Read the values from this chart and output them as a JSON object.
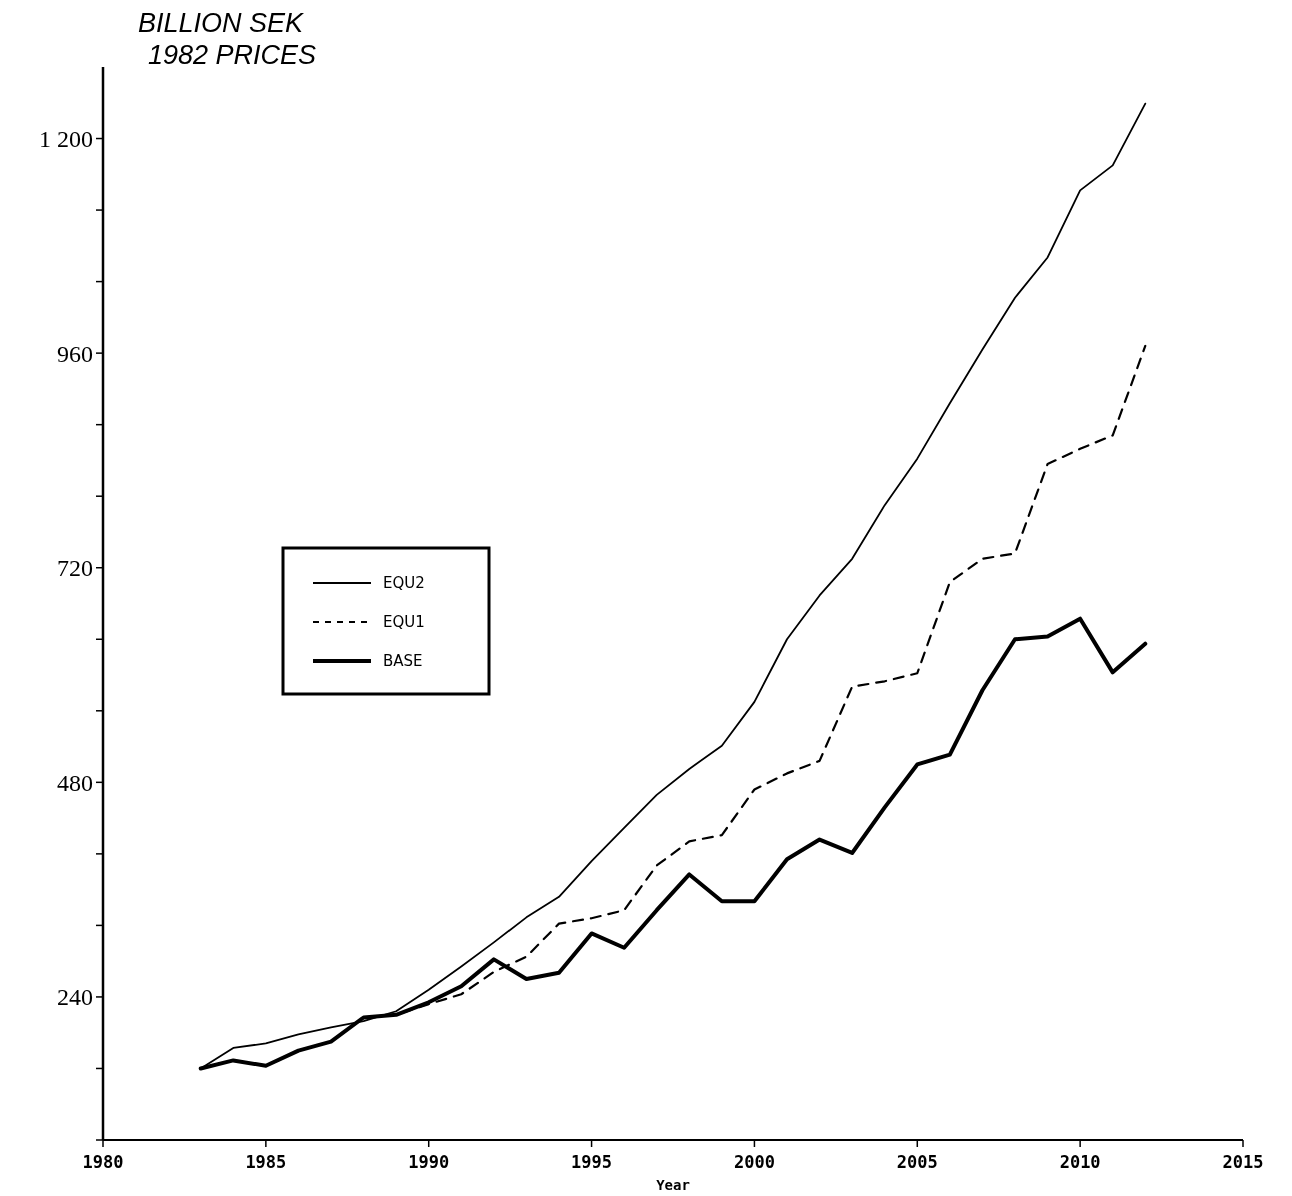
{
  "chart_data": {
    "type": "line",
    "ylabel": "BILLION SEK\n1982 PRICES",
    "xlabel": "Year",
    "x": [
      1983,
      1984,
      1985,
      1986,
      1987,
      1988,
      1989,
      1990,
      1991,
      1992,
      1993,
      1994,
      1995,
      1996,
      1997,
      1998,
      1999,
      2000,
      2001,
      2002,
      2003,
      2004,
      2005,
      2006,
      2007,
      2008,
      2009,
      2010,
      2011,
      2012
    ],
    "series": [
      {
        "name": "EQU2",
        "color": "#000000",
        "line_style": "solid",
        "values": [
          160,
          183,
          188,
          198,
          206,
          213,
          224,
          248,
          274,
          301,
          329,
          352,
          392,
          429,
          466,
          495,
          521,
          570,
          640,
          689,
          730,
          790,
          842,
          904,
          964,
          1022,
          1067,
          1142,
          1170,
          1239
        ]
      },
      {
        "name": "EQU1",
        "color": "#000000",
        "line_style": "dashed",
        "values": [
          160,
          169,
          163,
          180,
          190,
          217,
          220,
          232,
          243,
          268,
          285,
          322,
          328,
          337,
          387,
          414,
          421,
          472,
          490,
          504,
          587,
          593,
          602,
          704,
          730,
          736,
          836,
          853,
          868,
          968
        ]
      },
      {
        "name": "BASE",
        "color": "#000000",
        "line_style": "solid",
        "values": [
          160,
          169,
          163,
          180,
          190,
          217,
          220,
          234,
          252,
          282,
          260,
          267,
          311,
          295,
          337,
          377,
          347,
          347,
          394,
          416,
          401,
          452,
          500,
          511,
          583,
          640,
          643,
          663,
          603,
          635
        ]
      }
    ],
    "xlim": [
      1980,
      2015
    ],
    "xticks": [
      1980,
      1985,
      1990,
      1995,
      2000,
      2005,
      2010,
      2015
    ],
    "ylim": [
      80,
      1280
    ],
    "yticks": [
      {
        "value": 80,
        "label": null
      },
      {
        "value": 160,
        "label": null
      },
      {
        "value": 240,
        "label": "240"
      },
      {
        "value": 320,
        "label": null
      },
      {
        "value": 400,
        "label": null
      },
      {
        "value": 480,
        "label": "480"
      },
      {
        "value": 560,
        "label": null
      },
      {
        "value": 640,
        "label": null
      },
      {
        "value": 720,
        "label": "720"
      },
      {
        "value": 800,
        "label": null
      },
      {
        "value": 880,
        "label": null
      },
      {
        "value": 960,
        "label": "960"
      },
      {
        "value": 1040,
        "label": null
      },
      {
        "value": 1120,
        "label": null
      },
      {
        "value": 1200,
        "label": "1 200"
      }
    ],
    "grid": false,
    "legend": "left",
    "marker": "none"
  }
}
